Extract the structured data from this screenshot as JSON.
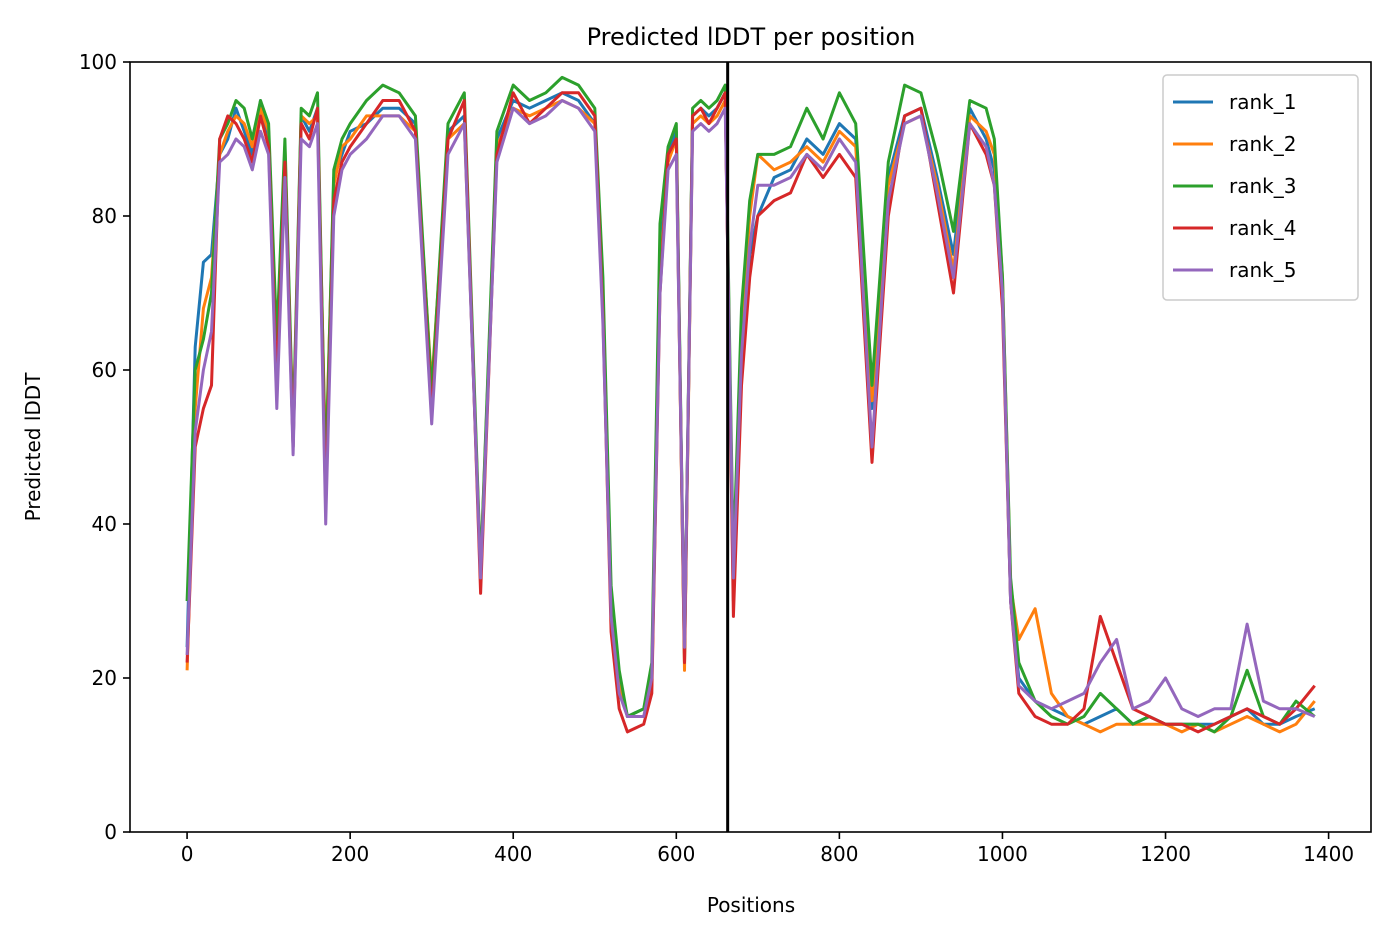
{
  "chart_data": {
    "type": "line",
    "title": "Predicted lDDT per position",
    "xlabel": "Positions",
    "ylabel": "Predicted lDDT",
    "xlim": [
      -70,
      1452
    ],
    "ylim": [
      0,
      100
    ],
    "xticks": [
      0,
      200,
      400,
      600,
      800,
      1000,
      1200,
      1400
    ],
    "yticks": [
      0,
      20,
      40,
      60,
      80,
      100
    ],
    "grid": false,
    "legend_position": "top-right",
    "chain_break": 663,
    "series": [
      {
        "name": "rank_1",
        "color": "#1f77b4",
        "x": [
          0,
          10,
          20,
          30,
          40,
          50,
          60,
          70,
          80,
          90,
          100,
          110,
          120,
          130,
          140,
          150,
          160,
          170,
          180,
          190,
          200,
          220,
          240,
          260,
          280,
          300,
          320,
          340,
          360,
          380,
          400,
          420,
          440,
          460,
          480,
          500,
          510,
          520,
          530,
          540,
          560,
          570,
          580,
          590,
          600,
          610,
          620,
          630,
          640,
          650,
          660,
          670,
          680,
          690,
          700,
          720,
          740,
          760,
          780,
          800,
          820,
          840,
          860,
          880,
          900,
          920,
          940,
          960,
          980,
          990,
          1000,
          1010,
          1020,
          1040,
          1060,
          1080,
          1100,
          1120,
          1140,
          1160,
          1180,
          1200,
          1220,
          1240,
          1260,
          1280,
          1300,
          1320,
          1340,
          1360,
          1383
        ],
        "y": [
          24,
          63,
          74,
          75,
          88,
          90,
          94,
          91,
          88,
          95,
          90,
          60,
          88,
          50,
          93,
          91,
          94,
          44,
          85,
          88,
          91,
          92,
          94,
          94,
          92,
          55,
          91,
          93,
          33,
          90,
          95,
          94,
          95,
          96,
          95,
          92,
          70,
          30,
          20,
          15,
          16,
          20,
          74,
          88,
          91,
          22,
          93,
          94,
          93,
          94,
          96,
          30,
          60,
          75,
          80,
          85,
          86,
          90,
          88,
          92,
          90,
          55,
          85,
          93,
          94,
          85,
          75,
          94,
          90,
          86,
          70,
          30,
          20,
          17,
          16,
          15,
          14,
          15,
          16,
          14,
          15,
          14,
          14,
          14,
          14,
          15,
          16,
          14,
          14,
          15,
          16
        ]
      },
      {
        "name": "rank_2",
        "color": "#ff7f0e",
        "x": [
          0,
          10,
          20,
          30,
          40,
          50,
          60,
          70,
          80,
          90,
          100,
          110,
          120,
          130,
          140,
          150,
          160,
          170,
          180,
          190,
          200,
          220,
          240,
          260,
          280,
          300,
          320,
          340,
          360,
          380,
          400,
          420,
          440,
          460,
          480,
          500,
          510,
          520,
          530,
          540,
          560,
          570,
          580,
          590,
          600,
          610,
          620,
          630,
          640,
          650,
          660,
          670,
          680,
          690,
          700,
          720,
          740,
          760,
          780,
          800,
          820,
          840,
          860,
          880,
          900,
          920,
          940,
          960,
          980,
          990,
          1000,
          1010,
          1020,
          1040,
          1060,
          1080,
          1100,
          1120,
          1140,
          1160,
          1180,
          1200,
          1220,
          1240,
          1260,
          1280,
          1300,
          1320,
          1340,
          1360,
          1383
        ],
        "y": [
          21,
          55,
          68,
          72,
          88,
          91,
          93,
          92,
          89,
          94,
          91,
          62,
          89,
          51,
          93,
          92,
          93,
          48,
          84,
          89,
          90,
          93,
          93,
          93,
          91,
          58,
          90,
          92,
          34,
          89,
          94,
          93,
          94,
          95,
          94,
          92,
          68,
          28,
          19,
          15,
          15,
          19,
          72,
          87,
          90,
          21,
          92,
          93,
          92,
          93,
          95,
          32,
          65,
          80,
          88,
          86,
          87,
          89,
          87,
          91,
          89,
          56,
          84,
          92,
          93,
          84,
          73,
          93,
          91,
          88,
          72,
          32,
          25,
          29,
          18,
          15,
          14,
          13,
          14,
          14,
          14,
          14,
          13,
          14,
          13,
          14,
          15,
          14,
          13,
          14,
          17
        ]
      },
      {
        "name": "rank_3",
        "color": "#2ca02c",
        "x": [
          0,
          10,
          20,
          30,
          40,
          50,
          60,
          70,
          80,
          90,
          100,
          110,
          120,
          130,
          140,
          150,
          160,
          170,
          180,
          190,
          200,
          220,
          240,
          260,
          280,
          300,
          320,
          340,
          360,
          380,
          400,
          420,
          440,
          460,
          480,
          500,
          510,
          520,
          530,
          540,
          560,
          570,
          580,
          590,
          600,
          610,
          620,
          630,
          640,
          650,
          660,
          670,
          680,
          690,
          700,
          720,
          740,
          760,
          780,
          800,
          820,
          840,
          860,
          880,
          900,
          920,
          940,
          960,
          980,
          990,
          1000,
          1010,
          1020,
          1040,
          1060,
          1080,
          1100,
          1120,
          1140,
          1160,
          1180,
          1200,
          1220,
          1240,
          1260,
          1280,
          1300,
          1320,
          1340,
          1360,
          1383
        ],
        "y": [
          30,
          60,
          64,
          70,
          90,
          92,
          95,
          94,
          90,
          95,
          92,
          64,
          90,
          52,
          94,
          93,
          96,
          46,
          86,
          90,
          92,
          95,
          97,
          96,
          93,
          57,
          92,
          96,
          34,
          91,
          97,
          95,
          96,
          98,
          97,
          94,
          72,
          32,
          21,
          15,
          16,
          22,
          79,
          89,
          92,
          23,
          94,
          95,
          94,
          95,
          97,
          35,
          68,
          82,
          88,
          88,
          89,
          94,
          90,
          96,
          92,
          58,
          87,
          97,
          96,
          88,
          78,
          95,
          94,
          90,
          72,
          33,
          22,
          17,
          15,
          14,
          15,
          18,
          16,
          14,
          15,
          14,
          14,
          14,
          13,
          15,
          21,
          15,
          14,
          17,
          15
        ]
      },
      {
        "name": "rank_4",
        "color": "#d62728",
        "x": [
          0,
          10,
          20,
          30,
          40,
          50,
          60,
          70,
          80,
          90,
          100,
          110,
          120,
          130,
          140,
          150,
          160,
          170,
          180,
          190,
          200,
          220,
          240,
          260,
          280,
          300,
          320,
          340,
          360,
          380,
          400,
          420,
          440,
          460,
          480,
          500,
          510,
          520,
          530,
          540,
          560,
          570,
          580,
          590,
          600,
          610,
          620,
          630,
          640,
          650,
          660,
          670,
          680,
          690,
          700,
          720,
          740,
          760,
          780,
          800,
          820,
          840,
          860,
          880,
          900,
          920,
          940,
          960,
          980,
          990,
          1000,
          1010,
          1020,
          1040,
          1060,
          1080,
          1100,
          1120,
          1140,
          1160,
          1180,
          1200,
          1220,
          1240,
          1260,
          1280,
          1300,
          1320,
          1340,
          1360,
          1383
        ],
        "y": [
          22,
          50,
          55,
          58,
          90,
          93,
          92,
          90,
          87,
          93,
          89,
          58,
          87,
          50,
          92,
          90,
          94,
          42,
          82,
          87,
          89,
          92,
          95,
          95,
          91,
          54,
          90,
          95,
          31,
          88,
          96,
          92,
          94,
          96,
          96,
          93,
          67,
          26,
          16,
          13,
          14,
          18,
          70,
          88,
          90,
          22,
          93,
          94,
          92,
          94,
          96,
          28,
          58,
          72,
          80,
          82,
          83,
          88,
          85,
          88,
          85,
          48,
          80,
          93,
          94,
          82,
          70,
          92,
          88,
          84,
          68,
          30,
          18,
          15,
          14,
          14,
          16,
          28,
          22,
          16,
          15,
          14,
          14,
          13,
          14,
          15,
          16,
          15,
          14,
          16,
          19
        ]
      },
      {
        "name": "rank_5",
        "color": "#9467bd",
        "x": [
          0,
          10,
          20,
          30,
          40,
          50,
          60,
          70,
          80,
          90,
          100,
          110,
          120,
          130,
          140,
          150,
          160,
          170,
          180,
          190,
          200,
          220,
          240,
          260,
          280,
          300,
          320,
          340,
          360,
          380,
          400,
          420,
          440,
          460,
          480,
          500,
          510,
          520,
          530,
          540,
          560,
          570,
          580,
          590,
          600,
          610,
          620,
          630,
          640,
          650,
          660,
          670,
          680,
          690,
          700,
          720,
          740,
          760,
          780,
          800,
          820,
          840,
          860,
          880,
          900,
          920,
          940,
          960,
          980,
          990,
          1000,
          1010,
          1020,
          1040,
          1060,
          1080,
          1100,
          1120,
          1140,
          1160,
          1180,
          1200,
          1220,
          1240,
          1260,
          1280,
          1300,
          1320,
          1340,
          1360,
          1383
        ],
        "y": [
          23,
          52,
          60,
          65,
          87,
          88,
          90,
          89,
          86,
          91,
          88,
          55,
          85,
          49,
          90,
          89,
          92,
          40,
          80,
          86,
          88,
          90,
          93,
          93,
          90,
          53,
          88,
          92,
          33,
          87,
          94,
          92,
          93,
          95,
          94,
          91,
          66,
          28,
          18,
          15,
          15,
          20,
          70,
          86,
          88,
          24,
          91,
          92,
          91,
          92,
          94,
          33,
          62,
          76,
          84,
          84,
          85,
          88,
          86,
          90,
          87,
          50,
          82,
          92,
          93,
          83,
          72,
          92,
          89,
          84,
          70,
          30,
          19,
          17,
          16,
          17,
          18,
          22,
          25,
          16,
          17,
          20,
          16,
          15,
          16,
          16,
          27,
          17,
          16,
          16,
          15
        ]
      }
    ]
  }
}
